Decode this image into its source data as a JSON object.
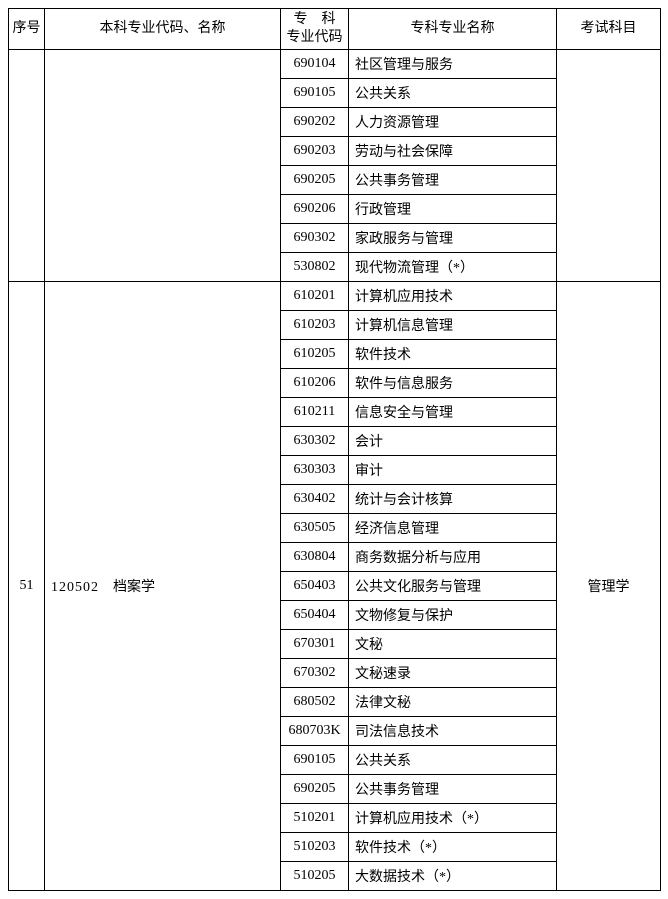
{
  "headers": {
    "seq": "序号",
    "bk": "本科专业代码、名称",
    "zcode": "专　科\n专业代码",
    "zname": "专科专业名称",
    "exam": "考试科目"
  },
  "groups": [
    {
      "seq": "",
      "bk_code": "",
      "bk_name": "",
      "exam": "",
      "rows": [
        {
          "code": "690104",
          "name": "社区管理与服务"
        },
        {
          "code": "690105",
          "name": "公共关系"
        },
        {
          "code": "690202",
          "name": "人力资源管理"
        },
        {
          "code": "690203",
          "name": "劳动与社会保障"
        },
        {
          "code": "690205",
          "name": "公共事务管理"
        },
        {
          "code": "690206",
          "name": "行政管理"
        },
        {
          "code": "690302",
          "name": "家政服务与管理"
        },
        {
          "code": "530802",
          "name": "现代物流管理（*）"
        }
      ]
    },
    {
      "seq": "51",
      "bk_code": "120502",
      "bk_name": "档案学",
      "exam": "管理学",
      "rows": [
        {
          "code": "610201",
          "name": "计算机应用技术"
        },
        {
          "code": "610203",
          "name": "计算机信息管理"
        },
        {
          "code": "610205",
          "name": "软件技术"
        },
        {
          "code": "610206",
          "name": "软件与信息服务"
        },
        {
          "code": "610211",
          "name": "信息安全与管理"
        },
        {
          "code": "630302",
          "name": "会计"
        },
        {
          "code": "630303",
          "name": "审计"
        },
        {
          "code": "630402",
          "name": "统计与会计核算"
        },
        {
          "code": "630505",
          "name": "经济信息管理"
        },
        {
          "code": "630804",
          "name": "商务数据分析与应用"
        },
        {
          "code": "650403",
          "name": "公共文化服务与管理"
        },
        {
          "code": "650404",
          "name": "文物修复与保护"
        },
        {
          "code": "670301",
          "name": "文秘"
        },
        {
          "code": "670302",
          "name": "文秘速录"
        },
        {
          "code": "680502",
          "name": "法律文秘"
        },
        {
          "code": "680703K",
          "name": "司法信息技术"
        },
        {
          "code": "690105",
          "name": "公共关系"
        },
        {
          "code": "690205",
          "name": "公共事务管理"
        },
        {
          "code": "510201",
          "name": "计算机应用技术（*）"
        },
        {
          "code": "510203",
          "name": "软件技术（*）"
        },
        {
          "code": "510205",
          "name": "大数据技术（*）"
        }
      ]
    }
  ]
}
